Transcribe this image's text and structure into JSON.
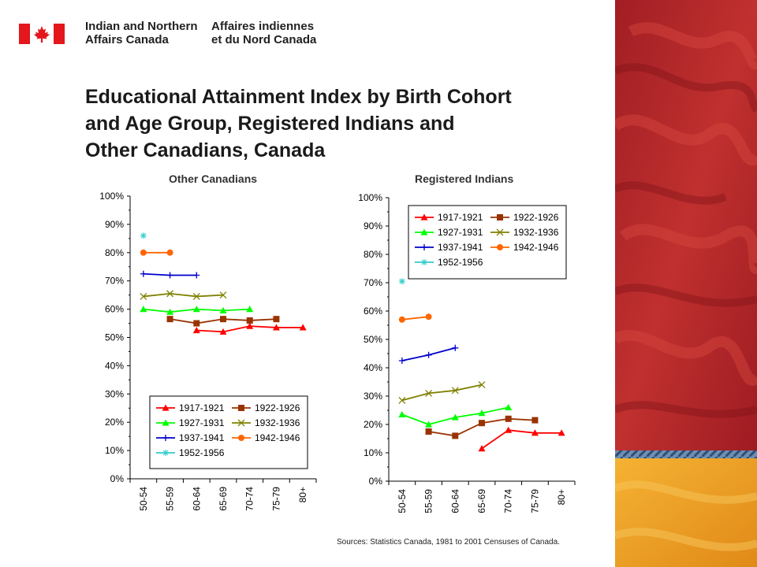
{
  "header": {
    "department_en": [
      "Indian and Northern",
      "Affairs Canada"
    ],
    "department_fr": [
      "Affaires indiennes",
      "et du Nord Canada"
    ],
    "flag_icon": "canada-flag-icon"
  },
  "title": [
    "Educational Attainment Index by Birth Cohort",
    "and Age Group, Registered Indians and",
    "Other Canadians, Canada"
  ],
  "sources": "Sources:  Statistics  Canada, 1981 to 2001 Censuses of Canada.",
  "colors": {
    "s1917": "#ff0000",
    "s1922": "#993300",
    "s1927": "#00ff00",
    "s1932": "#808000",
    "s1937": "#0000cc",
    "s1942": "#ff6600",
    "s1952": "#33cccc",
    "band_red": "#b8282e",
    "band_orange": "#f0a020"
  },
  "chart_data": [
    {
      "type": "line",
      "title": "Other Canadians",
      "categories": [
        "50-54",
        "55-59",
        "60-64",
        "65-69",
        "70-74",
        "75-79",
        "80+"
      ],
      "ylim": [
        0,
        100
      ],
      "y_ticks": [
        "0%",
        "10%",
        "20%",
        "30%",
        "40%",
        "50%",
        "60%",
        "70%",
        "80%",
        "90%",
        "100%"
      ],
      "legend_position": "bottom",
      "series": [
        {
          "name": "1917-1921",
          "marker": "triangle",
          "color": "#ff0000",
          "values": [
            null,
            null,
            52.5,
            52,
            54,
            53.5,
            53.5
          ]
        },
        {
          "name": "1922-1926",
          "marker": "square",
          "color": "#993300",
          "values": [
            null,
            56.5,
            55,
            56.5,
            56,
            56.5,
            null
          ]
        },
        {
          "name": "1927-1931",
          "marker": "triangle",
          "color": "#00ff00",
          "values": [
            60,
            59,
            60,
            59.5,
            60,
            null,
            null
          ]
        },
        {
          "name": "1932-1936",
          "marker": "x",
          "color": "#808000",
          "values": [
            64.5,
            65.5,
            64.5,
            65,
            null,
            null,
            null
          ]
        },
        {
          "name": "1937-1941",
          "marker": "plus",
          "color": "#0000cc",
          "values": [
            72.5,
            72,
            72,
            null,
            null,
            null,
            null
          ]
        },
        {
          "name": "1942-1946",
          "marker": "circle",
          "color": "#ff6600",
          "values": [
            80,
            80,
            null,
            null,
            null,
            null,
            null
          ]
        },
        {
          "name": "1952-1956",
          "marker": "star",
          "color": "#33cccc",
          "values": [
            86,
            null,
            null,
            null,
            null,
            null,
            null
          ]
        }
      ]
    },
    {
      "type": "line",
      "title": "Registered Indians",
      "categories": [
        "50-54",
        "55-59",
        "60-64",
        "65-69",
        "70-74",
        "75-79",
        "80+"
      ],
      "ylim": [
        0,
        100
      ],
      "y_ticks": [
        "0%",
        "10%",
        "20%",
        "30%",
        "40%",
        "50%",
        "60%",
        "70%",
        "80%",
        "90%",
        "100%"
      ],
      "legend_position": "top",
      "series": [
        {
          "name": "1917-1921",
          "marker": "triangle",
          "color": "#ff0000",
          "values": [
            null,
            null,
            null,
            11.5,
            18,
            17,
            17
          ]
        },
        {
          "name": "1922-1926",
          "marker": "square",
          "color": "#993300",
          "values": [
            null,
            17.5,
            16,
            20.5,
            22,
            21.5,
            null
          ]
        },
        {
          "name": "1927-1931",
          "marker": "triangle",
          "color": "#00ff00",
          "values": [
            23.5,
            20,
            22.5,
            24,
            26,
            null,
            null
          ]
        },
        {
          "name": "1932-1936",
          "marker": "x",
          "color": "#808000",
          "values": [
            28.5,
            31,
            32,
            34,
            null,
            null,
            null
          ]
        },
        {
          "name": "1937-1941",
          "marker": "plus",
          "color": "#0000cc",
          "values": [
            42.5,
            44.5,
            47,
            null,
            null,
            null,
            null
          ]
        },
        {
          "name": "1942-1946",
          "marker": "circle",
          "color": "#ff6600",
          "values": [
            57,
            58,
            null,
            null,
            null,
            null,
            null
          ]
        },
        {
          "name": "1952-1956",
          "marker": "star",
          "color": "#33cccc",
          "values": [
            70.5,
            null,
            null,
            null,
            null,
            null,
            null
          ]
        }
      ]
    }
  ]
}
